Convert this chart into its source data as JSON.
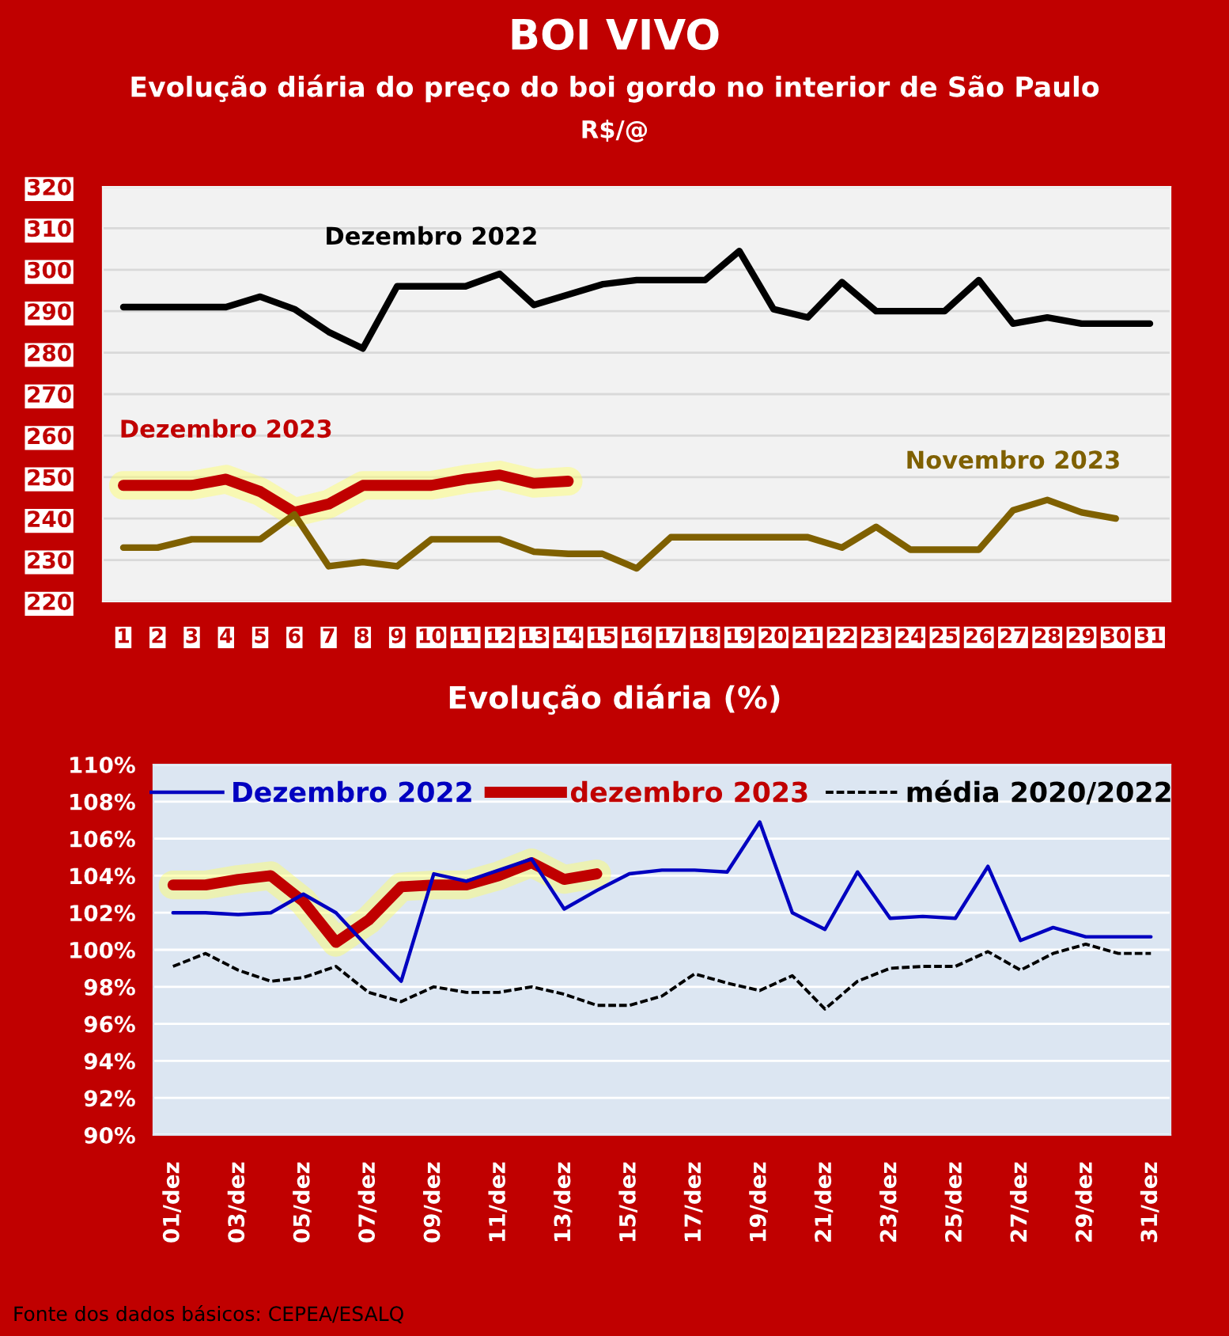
{
  "chart_data": [
    {
      "type": "line",
      "title": "BOI VIVO",
      "subtitle": "Evolução diária do preço do boi gordo no interior de São Paulo",
      "ylabel": "R$/@",
      "categories": [
        "1",
        "2",
        "3",
        "4",
        "5",
        "6",
        "7",
        "8",
        "9",
        "10",
        "11",
        "12",
        "13",
        "14",
        "15",
        "16",
        "17",
        "18",
        "19",
        "20",
        "21",
        "22",
        "23",
        "24",
        "25",
        "26",
        "27",
        "28",
        "29",
        "30",
        "31"
      ],
      "series": [
        {
          "name": "Dezembro 2022",
          "color": "#000000",
          "values": [
            291,
            291,
            291,
            291,
            293.5,
            290.5,
            285,
            281,
            296,
            296,
            296,
            299,
            291.5,
            294,
            296.5,
            297.5,
            297.5,
            297.5,
            304.5,
            290.5,
            288.5,
            297,
            290,
            290,
            290,
            297.5,
            287,
            288.5,
            287,
            287,
            287
          ]
        },
        {
          "name": "Dezembro 2023",
          "color": "#c00000",
          "values": [
            248,
            248,
            248,
            249.5,
            246.5,
            241.5,
            243.5,
            248,
            248,
            248,
            249.5,
            250.5,
            248.5,
            249,
            null,
            null,
            null,
            null,
            null,
            null,
            null,
            null,
            null,
            null,
            null,
            null,
            null,
            null,
            null,
            null,
            null
          ]
        },
        {
          "name": "Novembro 2023",
          "color": "#7f6000",
          "values": [
            233,
            233,
            235,
            235,
            235,
            241,
            228.5,
            229.5,
            228.5,
            235,
            235,
            235,
            232,
            231.5,
            231.5,
            228,
            235.5,
            235.5,
            235.5,
            235.5,
            235.5,
            233,
            238,
            232.5,
            232.5,
            232.5,
            242,
            244.5,
            241.5,
            240,
            null
          ]
        }
      ],
      "ylim": [
        220,
        320
      ],
      "yticks": [
        220,
        230,
        240,
        250,
        260,
        270,
        280,
        290,
        300,
        310,
        320
      ],
      "grid": "y"
    },
    {
      "type": "line",
      "title": "Evolução diária (%)",
      "categories": [
        "01/dez",
        null,
        "03/dez",
        null,
        "05/dez",
        null,
        "07/dez",
        null,
        "09/dez",
        null,
        "11/dez",
        null,
        "13/dez",
        null,
        "15/dez",
        null,
        "17/dez",
        null,
        "19/dez",
        null,
        "21/dez",
        null,
        "23/dez",
        null,
        "25/dez",
        null,
        "27/dez",
        null,
        "29/dez",
        null,
        "31/dez"
      ],
      "series": [
        {
          "name": "Dezembro 2022",
          "color": "#0000c0",
          "values": [
            102.0,
            102.0,
            101.9,
            102.0,
            103.0,
            102.0,
            100.1,
            98.3,
            104.1,
            103.7,
            104.3,
            104.9,
            102.2,
            103.2,
            104.1,
            104.3,
            104.3,
            104.2,
            106.9,
            102.0,
            101.1,
            104.2,
            101.7,
            101.8,
            101.7,
            104.5,
            100.5,
            101.2,
            100.7,
            100.7,
            100.7
          ]
        },
        {
          "name": "dezembro 2023",
          "color": "#c00000",
          "values": [
            103.5,
            103.5,
            103.8,
            104.0,
            102.6,
            100.4,
            101.6,
            103.4,
            103.5,
            103.5,
            104.0,
            104.7,
            103.8,
            104.1,
            null,
            null,
            null,
            null,
            null,
            null,
            null,
            null,
            null,
            null,
            null,
            null,
            null,
            null,
            null,
            null,
            null
          ]
        },
        {
          "name": "média 2020/2022",
          "color": "#000000",
          "line_style": "dashed",
          "values": [
            99.1,
            99.8,
            98.9,
            98.3,
            98.5,
            99.1,
            97.7,
            97.2,
            98.0,
            97.7,
            97.7,
            98.0,
            97.6,
            97.0,
            97.0,
            97.5,
            98.7,
            98.2,
            97.8,
            98.6,
            96.8,
            98.3,
            99.0,
            99.1,
            99.1,
            99.9,
            98.9,
            99.8,
            100.3,
            99.8,
            99.8
          ]
        }
      ],
      "ylim": [
        90,
        110
      ],
      "yticks": [
        {
          "value": 90,
          "label": "90%"
        },
        {
          "value": 92,
          "label": "92%"
        },
        {
          "value": 94,
          "label": "94%"
        },
        {
          "value": 96,
          "label": "96%"
        },
        {
          "value": 98,
          "label": "98%"
        },
        {
          "value": 100,
          "label": "100%"
        },
        {
          "value": 102,
          "label": "102%"
        },
        {
          "value": 104,
          "label": "104%"
        },
        {
          "value": 106,
          "label": "106%"
        },
        {
          "value": 108,
          "label": "108%"
        },
        {
          "value": 110,
          "label": "110%"
        }
      ],
      "grid": "y",
      "legend": "top",
      "annotations": [
        "Fonte dos dados básicos: CEPEA/ESALQ"
      ]
    }
  ]
}
